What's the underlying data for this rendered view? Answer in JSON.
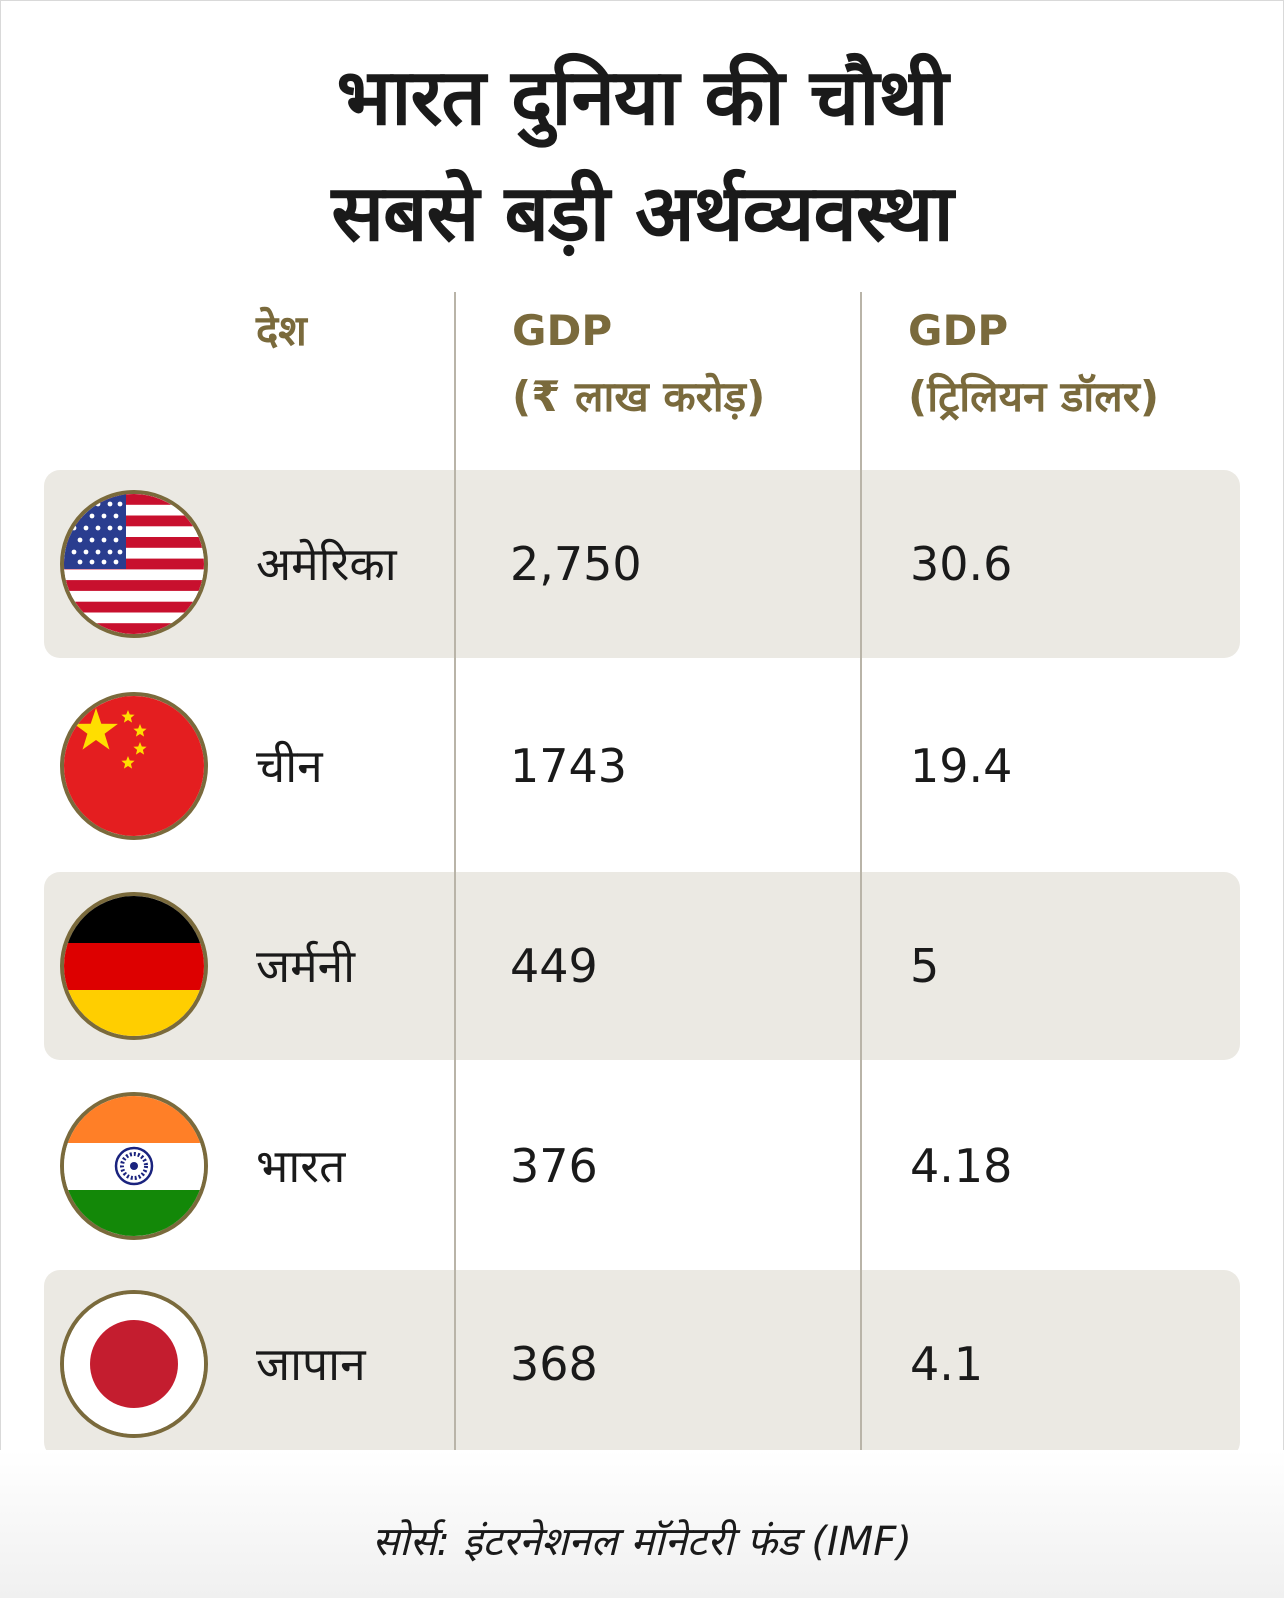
{
  "title_line1": "भारत दुनिया की चौथी",
  "title_line2": "सबसे बड़ी अर्थव्यवस्था",
  "chart_data": {
    "type": "table",
    "columns": {
      "country": "देश",
      "gdp_inr_line1": "GDP",
      "gdp_inr_line2": "(₹ लाख करोड़)",
      "gdp_usd_line1": "GDP",
      "gdp_usd_line2": "(ट्रिलियन डॉलर)"
    },
    "rows": [
      {
        "country": "अमेरिका",
        "flag": "usa-flag-icon",
        "gdp_inr": "2,750",
        "gdp_usd": "30.6"
      },
      {
        "country": "चीन",
        "flag": "china-flag-icon",
        "gdp_inr": "1743",
        "gdp_usd": "19.4"
      },
      {
        "country": "जर्मनी",
        "flag": "germany-flag-icon",
        "gdp_inr": "449",
        "gdp_usd": "5"
      },
      {
        "country": "भारत",
        "flag": "india-flag-icon",
        "gdp_inr": "376",
        "gdp_usd": "4.18"
      },
      {
        "country": "जापान",
        "flag": "japan-flag-icon",
        "gdp_inr": "368",
        "gdp_usd": "4.1"
      }
    ]
  },
  "source": "सोर्स: इंटरनेशनल मॉनेटरी फंड (IMF)",
  "colors": {
    "header": "#7a6a3c",
    "row_shade": "#ebe9e3",
    "divider": "#b9b4a8"
  }
}
